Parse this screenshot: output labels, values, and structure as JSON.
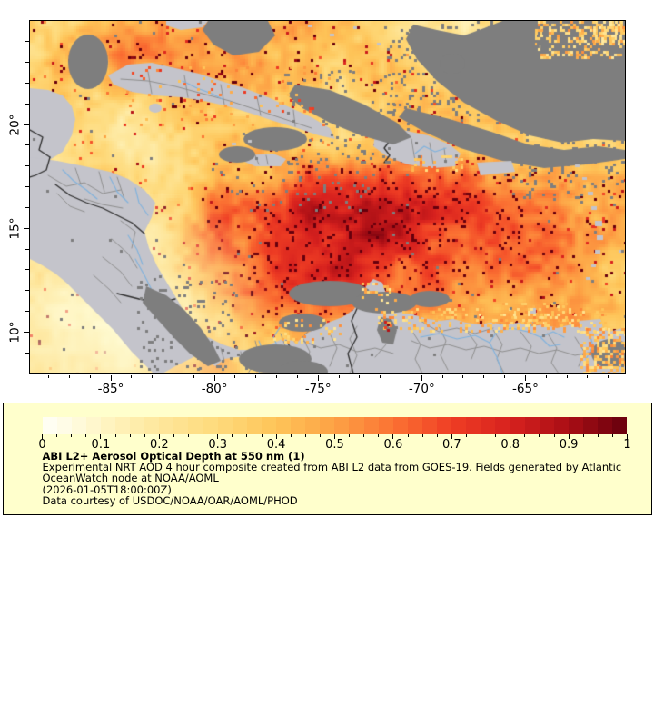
{
  "page": {
    "background": "#FFFFFF"
  },
  "figure": {
    "map": {
      "extent": {
        "lon_min": -88.9,
        "lon_max": -60.2,
        "lat_min": 8.0,
        "lat_max": 25.0
      },
      "lon_ticks": [
        {
          "lon": -85,
          "label": "-85°"
        },
        {
          "lon": -80,
          "label": "-80°"
        },
        {
          "lon": -75,
          "label": "-75°"
        },
        {
          "lon": -70,
          "label": "-70°"
        },
        {
          "lon": -65,
          "label": "-65°"
        }
      ],
      "lat_ticks": [
        {
          "lat": 20,
          "label": "20°"
        },
        {
          "lat": 15,
          "label": "15°"
        },
        {
          "lat": 10,
          "label": "10°"
        }
      ],
      "minor_tick_step_deg": 1,
      "colors": {
        "no_data": "#7E7E7E",
        "land": "#C4C4CB",
        "river": "#7FB2DD",
        "admin_border": "#8F8F8F",
        "country_border": "#2F2F2F",
        "frame": "#000000"
      },
      "colormap_stops": [
        [
          0.0,
          "#FFFFF8"
        ],
        [
          0.05,
          "#FFFBE1"
        ],
        [
          0.12,
          "#FFF3BC"
        ],
        [
          0.2,
          "#FEE79C"
        ],
        [
          0.3,
          "#FEDA7B"
        ],
        [
          0.4,
          "#FEC458"
        ],
        [
          0.5,
          "#FDA245"
        ],
        [
          0.6,
          "#FB7233"
        ],
        [
          0.7,
          "#EF3E24"
        ],
        [
          0.8,
          "#D7211E"
        ],
        [
          0.9,
          "#A90E15"
        ],
        [
          1.0,
          "#67000D"
        ]
      ]
    },
    "legend": {
      "background": "#FFFFCC",
      "border_color": "#000000",
      "colorbar": {
        "min": 0,
        "max": 1,
        "segments": 40,
        "minor_ticks_per_major": 4,
        "tick_labels": [
          "0",
          "0.1",
          "0.2",
          "0.3",
          "0.4",
          "0.5",
          "0.6",
          "0.7",
          "0.8",
          "0.9",
          "1"
        ]
      },
      "title": "ABI L2+ Aerosol Optical Depth at 550 nm (1)",
      "description_lines": [
        "Experimental NRT AOD 4 hour composite created from ABI L2 data from GOES-19. Fields generated by Atlantic",
        "OceanWatch node at NOAA/AOML"
      ],
      "timestamp": "(2026-01-05T18:00:00Z)",
      "courtesy": "Data courtesy of USDOC/NOAA/OAR/AOML/PHOD"
    }
  }
}
